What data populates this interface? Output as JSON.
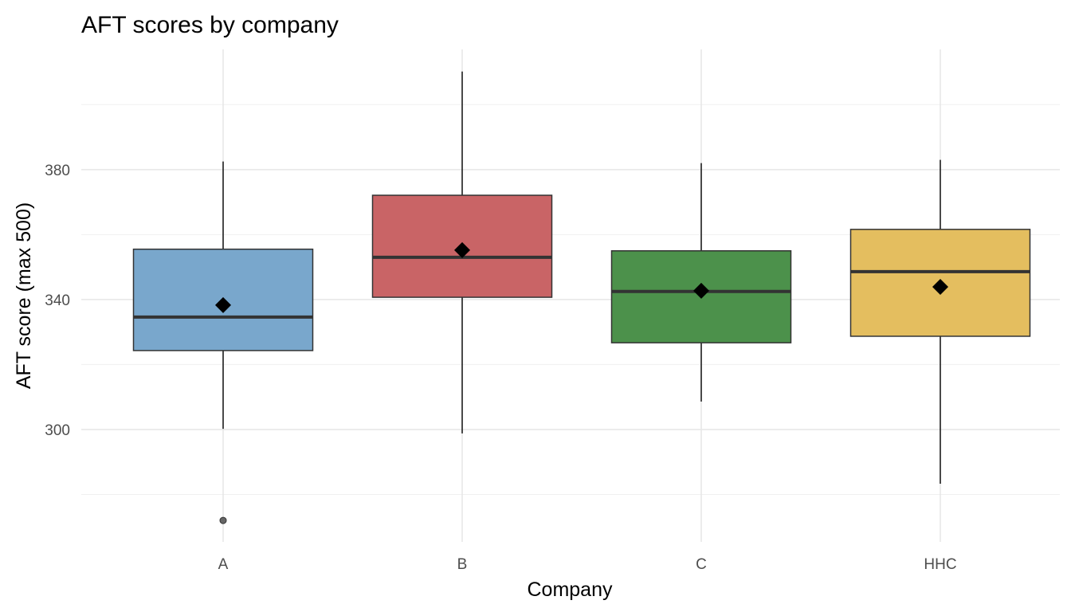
{
  "chart_data": {
    "type": "box",
    "title": "AFT scores by company",
    "xlabel": "Company",
    "ylabel": "AFT score (max 500)",
    "ylim": [
      265.4,
      417
    ],
    "yticks": [
      300,
      340,
      380
    ],
    "yminor": [
      280,
      320,
      360,
      400
    ],
    "grid": true,
    "categories": [
      "A",
      "B",
      "C",
      "HHC"
    ],
    "boxes": [
      {
        "name": "A",
        "whisker_low": 300.2,
        "q1": 324.3,
        "median": 334.6,
        "q3": 355.5,
        "whisker_high": 382.5,
        "mean": 338.3,
        "outliers": [
          272
        ],
        "color": "#79a7cc"
      },
      {
        "name": "B",
        "whisker_low": 298.8,
        "q1": 340.7,
        "median": 353.0,
        "q3": 372.1,
        "whisker_high": 410.2,
        "mean": 355.2,
        "outliers": [],
        "color": "#c96466"
      },
      {
        "name": "C",
        "whisker_low": 308.6,
        "q1": 326.7,
        "median": 342.5,
        "q3": 355.0,
        "whisker_high": 382.0,
        "mean": 342.7,
        "outliers": [],
        "color": "#4c914b"
      },
      {
        "name": "HHC",
        "whisker_low": 283.3,
        "q1": 328.7,
        "median": 348.6,
        "q3": 361.6,
        "whisker_high": 383.0,
        "mean": 343.9,
        "outliers": [],
        "color": "#e4be5f"
      }
    ]
  }
}
